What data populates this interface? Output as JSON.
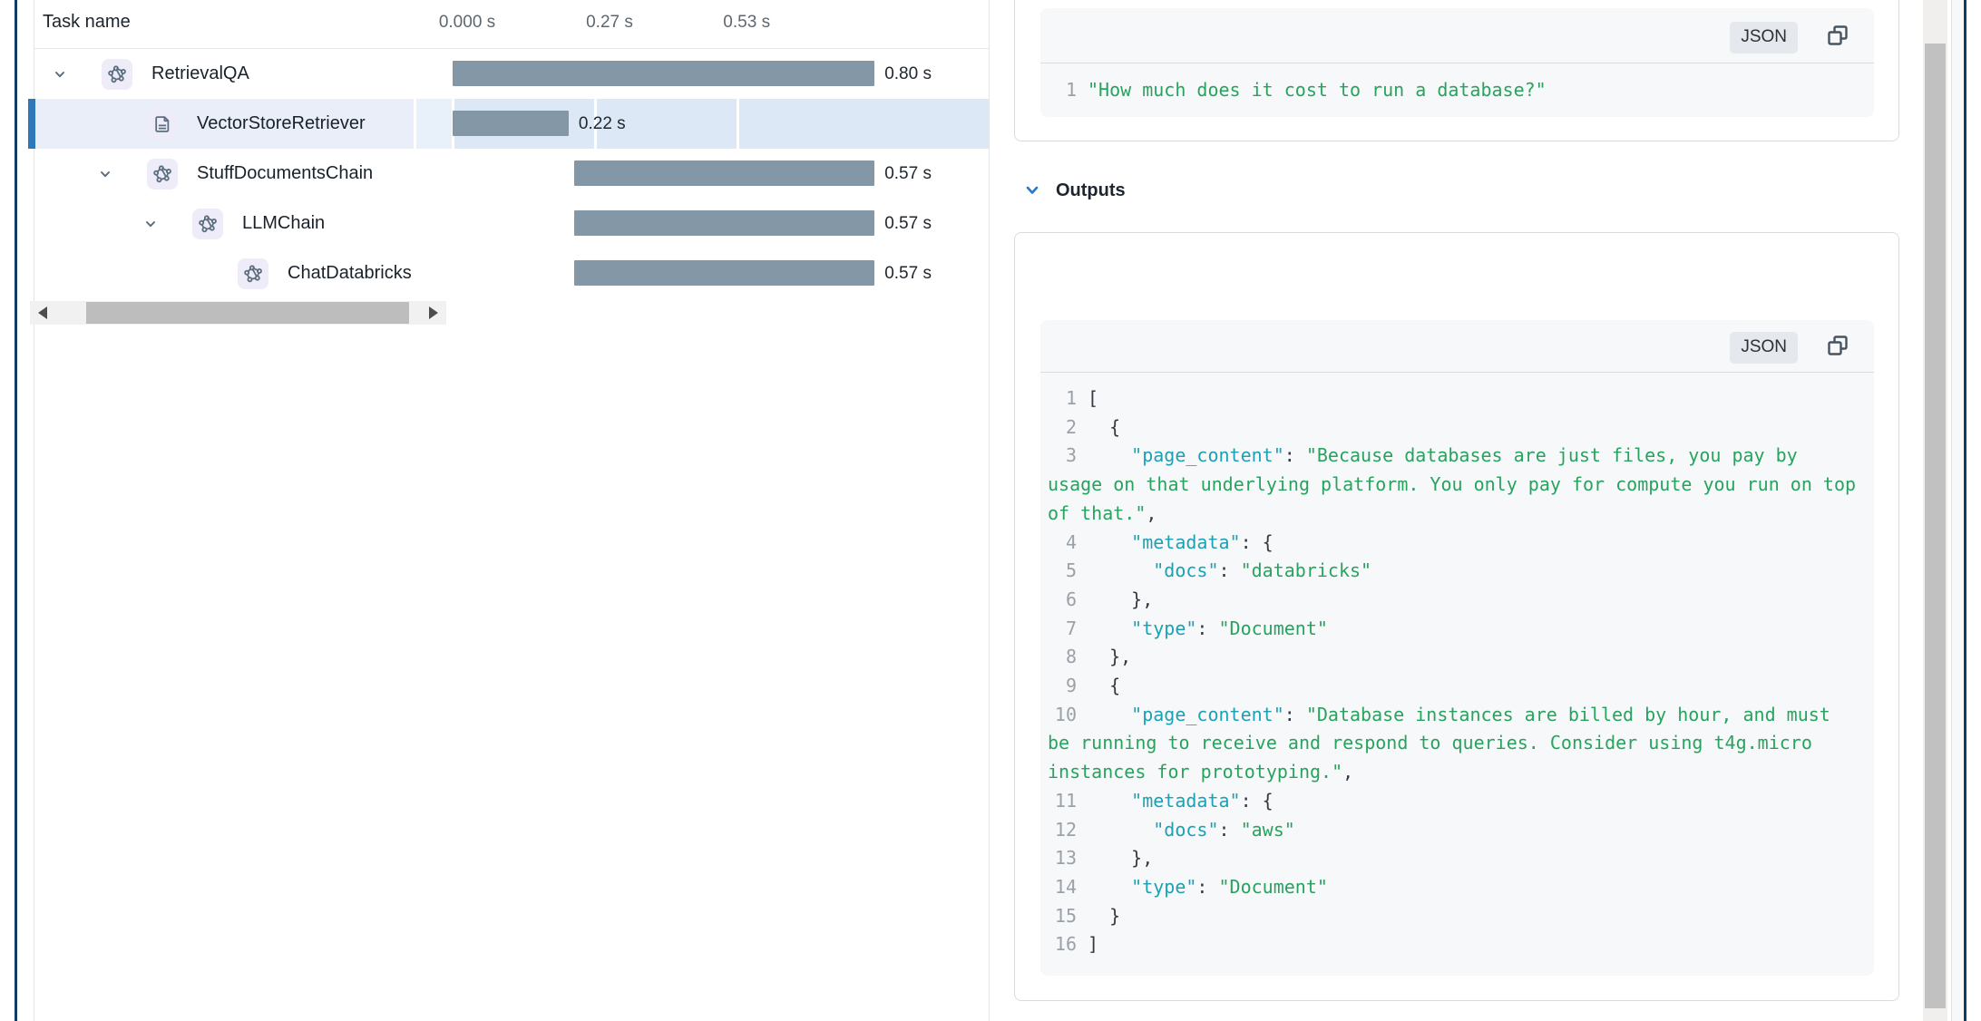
{
  "colors": {
    "bar": "#8397a7",
    "selected_row_accent": "#2e77b9",
    "selected_row_bg": "#e9eef8",
    "selected_timeline_bg": "#dce8f6",
    "json_key": "#1ba1b5",
    "json_string": "#28a35f",
    "outputs_chevron": "#2878c8",
    "window_edge": "#0e3c62"
  },
  "task_table": {
    "header": "Task name",
    "ticks": [
      {
        "label": "0.000 s",
        "t": 0
      },
      {
        "label": "0.27 s",
        "t": 0.27
      },
      {
        "label": "0.53 s",
        "t": 0.53
      }
    ],
    "rows": [
      {
        "name": "RetrievalQA",
        "icon": "chain",
        "indent": 0,
        "expander": true,
        "selected": false,
        "start_s": 0,
        "duration_s": 0.8,
        "duration_label": "0.80 s"
      },
      {
        "name": "VectorStoreRetriever",
        "icon": "document",
        "indent": 1,
        "expander": false,
        "selected": true,
        "start_s": 0,
        "duration_s": 0.22,
        "duration_label": "0.22 s"
      },
      {
        "name": "StuffDocumentsChain",
        "icon": "chain",
        "indent": 1,
        "expander": true,
        "selected": false,
        "start_s": 0.23,
        "duration_s": 0.57,
        "duration_label": "0.57 s"
      },
      {
        "name": "LLMChain",
        "icon": "chain",
        "indent": 2,
        "expander": true,
        "selected": false,
        "start_s": 0.23,
        "duration_s": 0.57,
        "duration_label": "0.57 s"
      },
      {
        "name": "ChatDatabricks",
        "icon": "chain",
        "indent": 3,
        "expander": false,
        "selected": false,
        "start_s": 0.23,
        "duration_s": 0.57,
        "duration_label": "0.57 s"
      }
    ]
  },
  "inputs_card": {
    "format_label": "JSON",
    "lines": [
      {
        "num": "1",
        "tokens": [
          [
            "str",
            "\"How much does it cost to run a database?\""
          ]
        ]
      }
    ]
  },
  "outputs_section": {
    "title": "Outputs",
    "card": {
      "format_label": "JSON",
      "lines": [
        {
          "num": "1",
          "tokens": [
            [
              "punc",
              "["
            ]
          ]
        },
        {
          "num": "2",
          "tokens": [
            [
              "punc",
              "  {"
            ]
          ]
        },
        {
          "num": "3",
          "tokens": [
            [
              "punc",
              "    "
            ],
            [
              "key",
              "\"page_content\""
            ],
            [
              "punc",
              ": "
            ],
            [
              "str",
              "\"Because databases are just files, you pay by"
            ]
          ]
        },
        {
          "cont": true,
          "tokens": [
            [
              "str",
              "usage on that underlying platform. You only pay for compute you run on top"
            ]
          ]
        },
        {
          "cont": true,
          "tokens": [
            [
              "str",
              "of that.\""
            ],
            [
              "punc",
              ","
            ]
          ]
        },
        {
          "num": "4",
          "tokens": [
            [
              "punc",
              "    "
            ],
            [
              "key",
              "\"metadata\""
            ],
            [
              "punc",
              ": {"
            ]
          ]
        },
        {
          "num": "5",
          "tokens": [
            [
              "punc",
              "      "
            ],
            [
              "key",
              "\"docs\""
            ],
            [
              "punc",
              ": "
            ],
            [
              "str",
              "\"databricks\""
            ]
          ]
        },
        {
          "num": "6",
          "tokens": [
            [
              "punc",
              "    },"
            ]
          ]
        },
        {
          "num": "7",
          "tokens": [
            [
              "punc",
              "    "
            ],
            [
              "key",
              "\"type\""
            ],
            [
              "punc",
              ": "
            ],
            [
              "str",
              "\"Document\""
            ]
          ]
        },
        {
          "num": "8",
          "tokens": [
            [
              "punc",
              "  },"
            ]
          ]
        },
        {
          "num": "9",
          "tokens": [
            [
              "punc",
              "  {"
            ]
          ]
        },
        {
          "num": "10",
          "tokens": [
            [
              "punc",
              "    "
            ],
            [
              "key",
              "\"page_content\""
            ],
            [
              "punc",
              ": "
            ],
            [
              "str",
              "\"Database instances are billed by hour, and must"
            ]
          ]
        },
        {
          "cont": true,
          "tokens": [
            [
              "str",
              "be running to receive and respond to queries. Consider using t4g.micro"
            ]
          ]
        },
        {
          "cont": true,
          "tokens": [
            [
              "str",
              "instances for prototyping.\""
            ],
            [
              "punc",
              ","
            ]
          ]
        },
        {
          "num": "11",
          "tokens": [
            [
              "punc",
              "    "
            ],
            [
              "key",
              "\"metadata\""
            ],
            [
              "punc",
              ": {"
            ]
          ]
        },
        {
          "num": "12",
          "tokens": [
            [
              "punc",
              "      "
            ],
            [
              "key",
              "\"docs\""
            ],
            [
              "punc",
              ": "
            ],
            [
              "str",
              "\"aws\""
            ]
          ]
        },
        {
          "num": "13",
          "tokens": [
            [
              "punc",
              "    },"
            ]
          ]
        },
        {
          "num": "14",
          "tokens": [
            [
              "punc",
              "    "
            ],
            [
              "key",
              "\"type\""
            ],
            [
              "punc",
              ": "
            ],
            [
              "str",
              "\"Document\""
            ]
          ]
        },
        {
          "num": "15",
          "tokens": [
            [
              "punc",
              "  }"
            ]
          ]
        },
        {
          "num": "16",
          "tokens": [
            [
              "punc",
              "]"
            ]
          ]
        }
      ]
    }
  }
}
